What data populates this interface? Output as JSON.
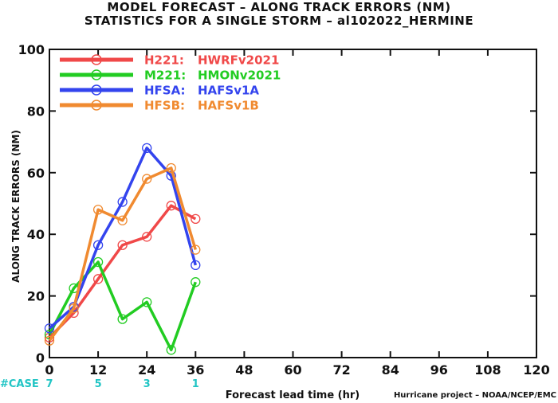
{
  "title_line1": "MODEL FORECAST – ALONG TRACK ERRORS (NM)",
  "title_line2": "STATISTICS FOR A SINGLE STORM – al102022_HERMINE",
  "credit": "Hurricane project – NOAA/NCEP/EMC",
  "case_label": "#CASE",
  "colors": {
    "case_text": "#22c5c5"
  },
  "chart_data": {
    "type": "line",
    "xlabel": "Forecast lead time (hr)",
    "ylabel": "ALONG TRACK ERRORS (NM)",
    "xlim": [
      0,
      120
    ],
    "ylim": [
      0,
      100
    ],
    "xticks": [
      0,
      12,
      24,
      36,
      48,
      60,
      72,
      84,
      96,
      108,
      120
    ],
    "yticks": [
      0,
      20,
      40,
      60,
      80,
      100
    ],
    "grid": false,
    "legend_position": "top-left",
    "cases": [
      {
        "x": 0,
        "n": "7"
      },
      {
        "x": 12,
        "n": "5"
      },
      {
        "x": 24,
        "n": "3"
      },
      {
        "x": 36,
        "n": "1"
      }
    ],
    "series": [
      {
        "code": "H221:",
        "name": "HWRFv2021",
        "color": "#f04848",
        "x": [
          0,
          6,
          12,
          18,
          24,
          30,
          36
        ],
        "y": [
          6.5,
          14.5,
          25.5,
          36.5,
          39.2,
          49.3,
          45.0
        ]
      },
      {
        "code": "M221:",
        "name": "HMONv2021",
        "color": "#22cc22",
        "x": [
          0,
          6,
          12,
          18,
          24,
          30,
          36
        ],
        "y": [
          7.5,
          22.5,
          31.0,
          12.5,
          18.0,
          2.5,
          24.5
        ]
      },
      {
        "code": "HFSA:",
        "name": "HAFSv1A",
        "color": "#3344ee",
        "x": [
          0,
          6,
          12,
          18,
          24,
          30,
          36
        ],
        "y": [
          9.5,
          16.5,
          36.5,
          50.5,
          68.0,
          59.0,
          30.0
        ]
      },
      {
        "code": "HFSB:",
        "name": "HAFSv1B",
        "color": "#f08a30",
        "x": [
          0,
          6,
          12,
          18,
          24,
          30,
          36
        ],
        "y": [
          5.5,
          16.0,
          48.0,
          44.5,
          58.0,
          61.5,
          35.0
        ]
      }
    ]
  }
}
